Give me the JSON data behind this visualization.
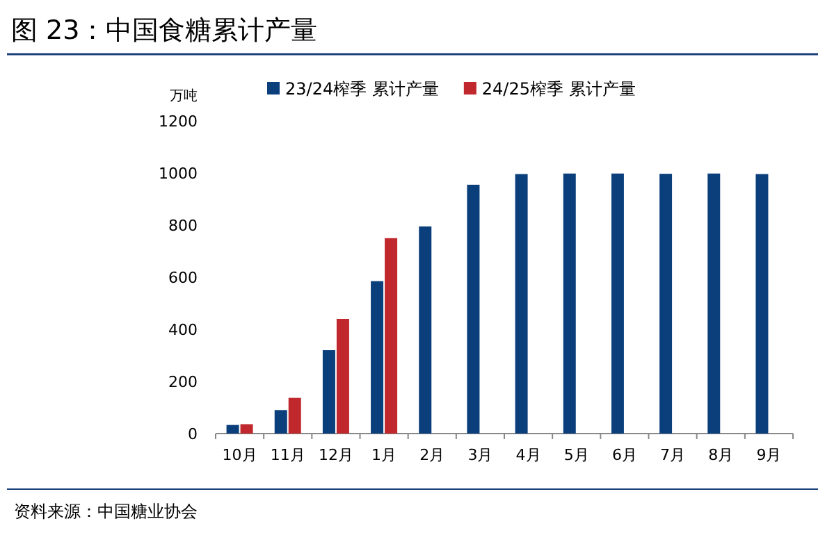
{
  "chart_data": {
    "type": "bar",
    "title": "图 23：中国食糖累计产量",
    "ylabel": "万吨",
    "categories": [
      "10月",
      "11月",
      "12月",
      "1月",
      "2月",
      "3月",
      "4月",
      "5月",
      "6月",
      "7月",
      "8月",
      "9月"
    ],
    "series": [
      {
        "name": "23/24榨季 累计产量",
        "color": "#0b3f7c",
        "values": [
          33,
          90,
          320,
          585,
          795,
          955,
          996,
          998,
          998,
          997,
          998,
          996
        ]
      },
      {
        "name": "24/25榨季 累计产量",
        "color": "#c0282d",
        "values": [
          36,
          137,
          440,
          750,
          null,
          null,
          null,
          null,
          null,
          null,
          null,
          null
        ]
      }
    ],
    "ylim": [
      0,
      1200
    ],
    "yticks": [
      0,
      200,
      400,
      600,
      800,
      1000,
      1200
    ],
    "legend": "top",
    "annotations": [
      "资料来源：中国糖业协会"
    ]
  }
}
